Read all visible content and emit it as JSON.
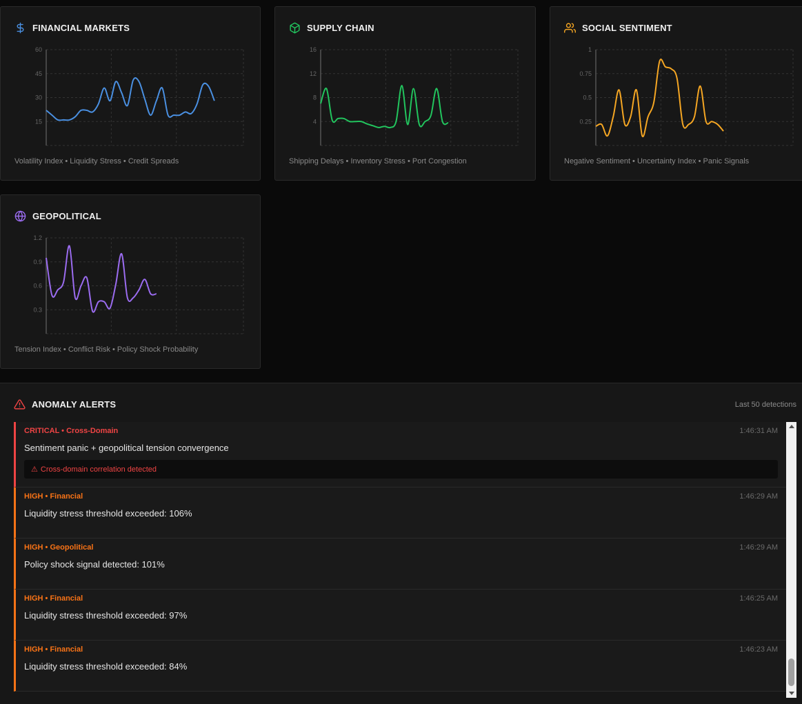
{
  "colors": {
    "financial": "#4a90e2",
    "supply": "#22c55e",
    "social": "#f5a623",
    "geopolitical": "#9b6cf0",
    "critical": "#ef4444",
    "high": "#f97316"
  },
  "panels": [
    {
      "title": "FINANCIAL MARKETS",
      "icon": "dollar-icon",
      "caption": "Volatility Index • Liquidity Stress • Credit Spreads"
    },
    {
      "title": "SUPPLY CHAIN",
      "icon": "box-icon",
      "caption": "Shipping Delays • Inventory Stress • Port Congestion"
    },
    {
      "title": "SOCIAL SENTIMENT",
      "icon": "users-icon",
      "caption": "Negative Sentiment • Uncertainty Index • Panic Signals"
    },
    {
      "title": "GEOPOLITICAL",
      "icon": "globe-icon",
      "caption": "Tension Index • Conflict Risk • Policy Shock Probability"
    }
  ],
  "chart_data": [
    {
      "type": "line",
      "ylim": [
        0,
        60
      ],
      "yticks": [
        "15",
        "30",
        "45",
        "60"
      ],
      "grid": true,
      "color": "#4a90e2",
      "x": [
        0,
        1,
        2,
        3,
        4,
        5,
        6,
        7,
        8,
        9,
        10,
        11,
        12,
        13,
        14,
        15,
        16,
        17,
        18,
        19,
        20,
        21,
        22,
        23,
        24,
        25,
        26,
        27,
        28,
        29,
        30,
        31,
        32,
        33,
        34
      ],
      "values": [
        22,
        19,
        16,
        16,
        16,
        18,
        22,
        22,
        21,
        26,
        36,
        28,
        40,
        33,
        25,
        41,
        40,
        29,
        19,
        28,
        36,
        19,
        19,
        19,
        21,
        20,
        26,
        38,
        37,
        28,
        null,
        null,
        null,
        null,
        null
      ]
    },
    {
      "type": "line",
      "ylim": [
        0,
        16
      ],
      "yticks": [
        "4",
        "8",
        "12",
        "16"
      ],
      "grid": true,
      "color": "#22c55e",
      "x": [
        0,
        1,
        2,
        3,
        4,
        5,
        6,
        7,
        8,
        9,
        10,
        11,
        12,
        13,
        14,
        15,
        16,
        17,
        18,
        19,
        20,
        21,
        22,
        23,
        24,
        25,
        26,
        27,
        28,
        29,
        30,
        31,
        32,
        33,
        34
      ],
      "values": [
        7,
        9.5,
        4.2,
        4.5,
        4.5,
        4.0,
        4.0,
        4.0,
        3.6,
        3.3,
        3.0,
        3.2,
        3.0,
        4.0,
        10,
        3.5,
        9.5,
        3.5,
        4.0,
        5.0,
        9.5,
        4.0,
        3.8,
        null,
        null,
        null,
        null,
        null,
        null,
        null,
        null,
        null,
        null,
        null,
        null
      ]
    },
    {
      "type": "line",
      "ylim": [
        0,
        1
      ],
      "yticks": [
        "0.25",
        "0.5",
        "0.75",
        "1"
      ],
      "grid": true,
      "color": "#f5a623",
      "x": [
        0,
        1,
        2,
        3,
        4,
        5,
        6,
        7,
        8,
        9,
        10,
        11,
        12,
        13,
        14,
        15,
        16,
        17,
        18,
        19,
        20,
        21,
        22,
        23,
        24,
        25,
        26,
        27,
        28,
        29,
        30,
        31,
        32,
        33,
        34
      ],
      "values": [
        0.2,
        0.22,
        0.1,
        0.3,
        0.58,
        0.22,
        0.3,
        0.58,
        0.1,
        0.3,
        0.45,
        0.88,
        0.82,
        0.8,
        0.7,
        0.22,
        0.22,
        0.3,
        0.62,
        0.25,
        0.25,
        0.22,
        0.15,
        null,
        null,
        null,
        null,
        null,
        null,
        null,
        null,
        null,
        null,
        null,
        null
      ]
    },
    {
      "type": "line",
      "ylim": [
        0,
        1.2
      ],
      "yticks": [
        "0.3",
        "0.6",
        "0.9",
        "1.2"
      ],
      "grid": true,
      "color": "#9b6cf0",
      "x": [
        0,
        1,
        2,
        3,
        4,
        5,
        6,
        7,
        8,
        9,
        10,
        11,
        12,
        13,
        14,
        15,
        16,
        17,
        18,
        19,
        20,
        21,
        22,
        23,
        24,
        25,
        26,
        27,
        28,
        29,
        30,
        31,
        32,
        33,
        34
      ],
      "values": [
        0.95,
        0.48,
        0.55,
        0.65,
        1.1,
        0.45,
        0.6,
        0.7,
        0.28,
        0.4,
        0.4,
        0.32,
        0.62,
        1.0,
        0.45,
        0.45,
        0.55,
        0.68,
        0.5,
        0.5,
        null,
        null,
        null,
        null,
        null,
        null,
        null,
        null,
        null,
        null,
        null,
        null,
        null,
        null,
        null
      ]
    }
  ],
  "alerts_panel": {
    "title": "ANOMALY ALERTS",
    "count_label": "Last 50 detections",
    "items": [
      {
        "severity": "critical",
        "meta": "CRITICAL • Cross-Domain",
        "time": "1:46:31 AM",
        "message": "Sentiment panic + geopolitical tension convergence",
        "note": "Cross-domain correlation detected"
      },
      {
        "severity": "high",
        "meta": "HIGH • Financial",
        "time": "1:46:29 AM",
        "message": "Liquidity stress threshold exceeded: 106%"
      },
      {
        "severity": "high",
        "meta": "HIGH • Geopolitical",
        "time": "1:46:29 AM",
        "message": "Policy shock signal detected: 101%"
      },
      {
        "severity": "high",
        "meta": "HIGH • Financial",
        "time": "1:46:25 AM",
        "message": "Liquidity stress threshold exceeded: 97%"
      },
      {
        "severity": "high",
        "meta": "HIGH • Financial",
        "time": "1:46:23 AM",
        "message": "Liquidity stress threshold exceeded: 84%"
      }
    ]
  }
}
